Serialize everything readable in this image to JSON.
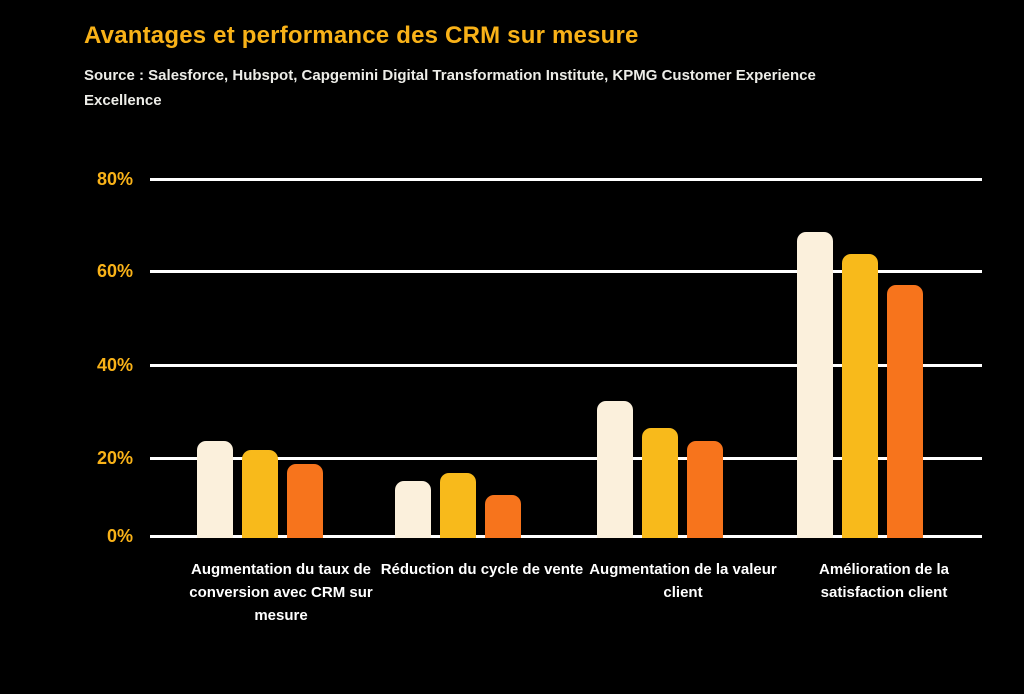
{
  "colors": {
    "background": "#000000",
    "title": "#F9B218",
    "axis_labels": "#F9B218",
    "subtitle_text": "#EDEDE8",
    "gridline": "#FFFFFF",
    "bar_cream": "#FBF0DC",
    "bar_amber": "#F8BA1B",
    "bar_orange": "#F7741C"
  },
  "chart_data": {
    "type": "bar",
    "title": "Avantages et performance des CRM sur mesure",
    "subtitle": "Source : Salesforce, Hubspot, Capgemini Digital Transformation Institute, KPMG Customer Experience Excellence",
    "categories": [
      "Augmentation du taux de conversion avec CRM sur mesure",
      "Réduction du cycle de vente",
      "Augmentation de la valeur client",
      "Amélioration de la satisfaction client"
    ],
    "series": [
      {
        "name": "cream",
        "color": "#FBF0DC",
        "values": [
          21,
          12,
          30,
          68
        ]
      },
      {
        "name": "amber",
        "color": "#F8BA1B",
        "values": [
          19,
          14,
          24,
          63
        ]
      },
      {
        "name": "orange",
        "color": "#F7741C",
        "values": [
          16,
          9,
          21,
          56
        ]
      }
    ],
    "ylabel": "",
    "xlabel": "",
    "ylim": [
      0,
      80
    ],
    "y_ticks": [
      "80%",
      "60%",
      "40%",
      "20%",
      "0%"
    ],
    "grid": true,
    "legend": false
  }
}
